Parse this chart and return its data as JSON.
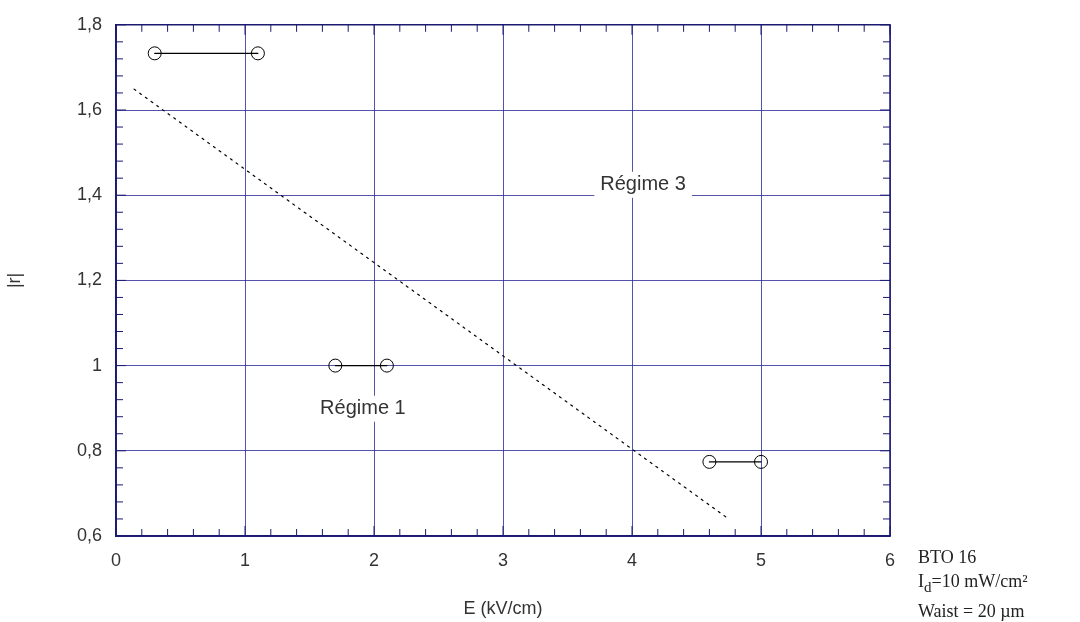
{
  "chart_data": {
    "type": "line",
    "xlabel": "E (kV/cm)",
    "ylabel": "|r|",
    "xlim": [
      0,
      6
    ],
    "ylim": [
      0.6,
      1.8
    ],
    "xticks": [
      0,
      {
        "value": 0.2,
        "label": null
      },
      {
        "value": 0.4,
        "label": null
      },
      {
        "value": 0.6,
        "label": null
      },
      {
        "value": 0.8,
        "label": null
      },
      1,
      {
        "value": 1.2,
        "label": null
      },
      {
        "value": 1.4,
        "label": null
      },
      {
        "value": 1.6,
        "label": null
      },
      {
        "value": 1.8,
        "label": null
      },
      2,
      {
        "value": 2.2,
        "label": null
      },
      {
        "value": 2.4,
        "label": null
      },
      {
        "value": 2.6,
        "label": null
      },
      {
        "value": 2.8,
        "label": null
      },
      3,
      {
        "value": 3.2,
        "label": null
      },
      {
        "value": 3.4,
        "label": null
      },
      {
        "value": 3.6,
        "label": null
      },
      {
        "value": 3.8,
        "label": null
      },
      4,
      {
        "value": 4.2,
        "label": null
      },
      {
        "value": 4.4,
        "label": null
      },
      {
        "value": 4.6,
        "label": null
      },
      {
        "value": 4.8,
        "label": null
      },
      5,
      {
        "value": 5.2,
        "label": null
      },
      {
        "value": 5.4,
        "label": null
      },
      {
        "value": 5.6,
        "label": null
      },
      {
        "value": 5.8,
        "label": null
      },
      6
    ],
    "yticks": [
      {
        "value": 0.6,
        "label": "0,6"
      },
      {
        "value": 0.64,
        "label": null
      },
      {
        "value": 0.68,
        "label": null
      },
      {
        "value": 0.72,
        "label": null
      },
      {
        "value": 0.76,
        "label": null
      },
      {
        "value": 0.8,
        "label": "0,8"
      },
      {
        "value": 0.84,
        "label": null
      },
      {
        "value": 0.88,
        "label": null
      },
      {
        "value": 0.92,
        "label": null
      },
      {
        "value": 0.96,
        "label": null
      },
      1,
      {
        "value": 1.04,
        "label": null
      },
      {
        "value": 1.08,
        "label": null
      },
      {
        "value": 1.12,
        "label": null
      },
      {
        "value": 1.16,
        "label": null
      },
      {
        "value": 1.2,
        "label": "1,2"
      },
      {
        "value": 1.24,
        "label": null
      },
      {
        "value": 1.28,
        "label": null
      },
      {
        "value": 1.32,
        "label": null
      },
      {
        "value": 1.36,
        "label": null
      },
      {
        "value": 1.4,
        "label": "1,4"
      },
      {
        "value": 1.44,
        "label": null
      },
      {
        "value": 1.48,
        "label": null
      },
      {
        "value": 1.52,
        "label": null
      },
      {
        "value": 1.56,
        "label": null
      },
      {
        "value": 1.6,
        "label": "1,6"
      },
      {
        "value": 1.64,
        "label": null
      },
      {
        "value": 1.68,
        "label": null
      },
      {
        "value": 1.72,
        "label": null
      },
      {
        "value": 1.76,
        "label": null
      },
      {
        "value": 1.8,
        "label": "1,8"
      }
    ],
    "grid": true,
    "legend": false,
    "series": [
      {
        "color": "#000000",
        "x": [
          0.3,
          1.1
        ],
        "values": [
          1.733,
          1.733
        ],
        "marker": "circle",
        "line_style": "solid"
      },
      {
        "color": "#000000",
        "x": [
          1.7,
          2.1
        ],
        "values": [
          1.0,
          1.0
        ],
        "marker": "circle",
        "line_style": "solid"
      },
      {
        "color": "#000000",
        "x": [
          4.6,
          5.0
        ],
        "values": [
          0.774,
          0.774
        ],
        "marker": "circle",
        "line_style": "solid"
      },
      {
        "color": "#000000",
        "x": [
          0.14,
          4.74
        ],
        "values": [
          1.649,
          0.642
        ],
        "marker": "none",
        "line_style": "dotted"
      }
    ],
    "annotations": [
      "Régime 1",
      "Régime 3",
      "BTO 16",
      "I$_{d}$=10 mW/cm²",
      "Waist = 20 µm"
    ]
  }
}
